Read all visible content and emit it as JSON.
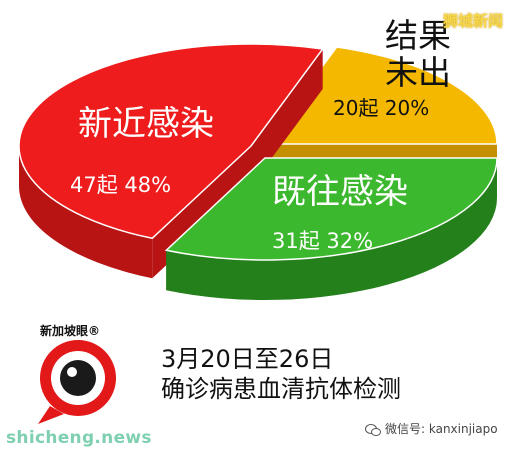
{
  "chart_data": {
    "type": "pie",
    "slices": [
      {
        "name": "新近感染",
        "count_label": "47起 48%",
        "value": 48,
        "color": "#ee1c1c",
        "side_color": "#b81414"
      },
      {
        "name": "既往感染",
        "count_label": "31起 32%",
        "value": 32,
        "color": "#3cb82e",
        "side_color": "#23801a"
      },
      {
        "name": "结果未出",
        "count_label": "20起 20%",
        "value": 20,
        "color": "#f5b800",
        "side_color": "#c48f00"
      }
    ],
    "title": "3月20日至26日 确诊病患血清抗体检测"
  },
  "caption": {
    "line1": "3月20日至26日",
    "line2": "确诊病患血清抗体检测"
  },
  "logo": {
    "text": "新加坡眼®"
  },
  "watermarks": {
    "top": "狮城新闻",
    "site": "shicheng.news",
    "wechat": "微信号: kanxinjiapo"
  },
  "icons": [
    "camera-logo-icon",
    "wechat-icon"
  ]
}
